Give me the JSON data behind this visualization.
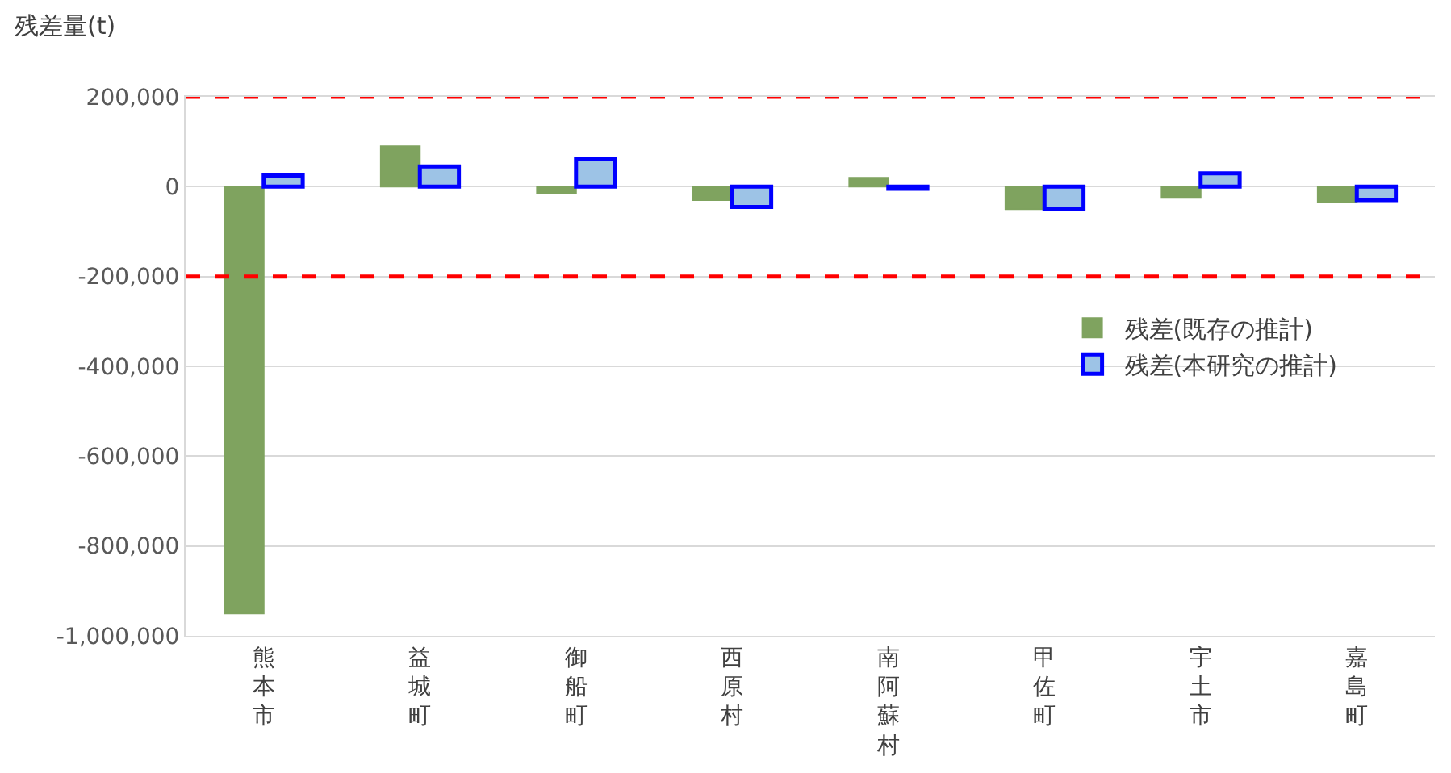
{
  "chart_data": {
    "type": "bar",
    "ylabel": "残差量(t)",
    "categories": [
      "熊本市",
      "益城町",
      "御船町",
      "西原村",
      "南阿蘇村",
      "甲佐町",
      "宇土市",
      "嘉島町"
    ],
    "series": [
      {
        "name": "残差(既存の推計)",
        "color": "#7fa35f",
        "values": [
          -950000,
          90000,
          -15000,
          -30000,
          20000,
          -50000,
          -25000,
          -35000
        ]
      },
      {
        "name": "残差(本研究の推計)",
        "color": "#9dc3e6",
        "values": [
          25000,
          45000,
          62000,
          -45000,
          -5000,
          -50000,
          30000,
          -30000
        ]
      }
    ],
    "ylim": [
      -1000000,
      200000
    ],
    "yticks": [
      {
        "value": -1000000,
        "label": "-1,000,000"
      },
      {
        "value": -800000,
        "label": "-800,000"
      },
      {
        "value": -600000,
        "label": "-600,000"
      },
      {
        "value": -400000,
        "label": "-400,000"
      },
      {
        "value": -200000,
        "label": "-200,000"
      },
      0,
      {
        "value": 200000,
        "label": "200,000"
      }
    ],
    "grid": "y",
    "legend": "right",
    "ref_lines": [
      {
        "axis": "y",
        "value": 200000,
        "color": "#ff0000",
        "line_style": "dashed"
      },
      {
        "axis": "y",
        "value": -200000,
        "color": "#ff0000",
        "line_style": "dashed"
      }
    ]
  }
}
